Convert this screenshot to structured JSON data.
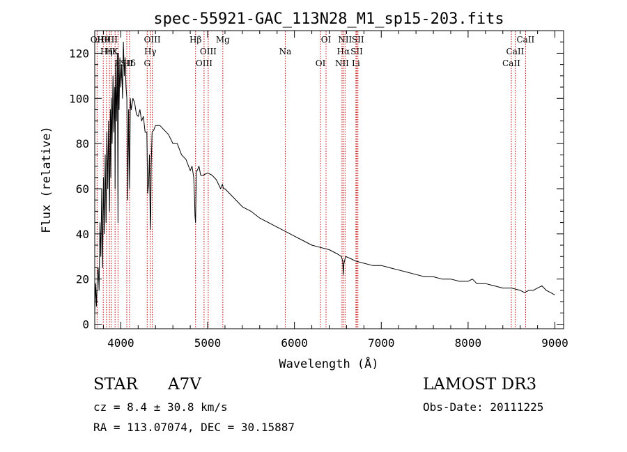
{
  "chart_data": {
    "type": "line",
    "title": "spec-55921-GAC_113N28_M1_sp15-203.fits",
    "xlabel": "Wavelength (Å)",
    "ylabel": "Flux (relative)",
    "xlim": [
      3700,
      9100
    ],
    "ylim": [
      -2,
      130
    ],
    "xticks": [
      4000,
      5000,
      6000,
      7000,
      8000,
      9000
    ],
    "yticks": [
      0,
      20,
      40,
      60,
      80,
      100,
      120
    ],
    "series": [
      {
        "name": "flux",
        "x": [
          3700,
          3710,
          3720,
          3730,
          3740,
          3750,
          3760,
          3770,
          3780,
          3790,
          3800,
          3810,
          3820,
          3830,
          3835,
          3840,
          3850,
          3860,
          3870,
          3880,
          3885,
          3890,
          3900,
          3910,
          3920,
          3930,
          3934,
          3940,
          3950,
          3960,
          3968,
          3970,
          3975,
          3980,
          3990,
          4000,
          4010,
          4020,
          4030,
          4040,
          4050,
          4060,
          4070,
          4080,
          4090,
          4101,
          4110,
          4120,
          4140,
          4160,
          4180,
          4200,
          4220,
          4240,
          4260,
          4280,
          4300,
          4310,
          4320,
          4330,
          4340,
          4345,
          4350,
          4360,
          4380,
          4400,
          4450,
          4500,
          4550,
          4600,
          4650,
          4700,
          4750,
          4800,
          4820,
          4840,
          4850,
          4855,
          4861,
          4865,
          4870,
          4880,
          4900,
          4920,
          4950,
          5000,
          5050,
          5100,
          5150,
          5170,
          5183,
          5200,
          5250,
          5300,
          5400,
          5500,
          5600,
          5700,
          5800,
          5900,
          6000,
          6100,
          6200,
          6300,
          6400,
          6500,
          6540,
          6556,
          6563,
          6570,
          6590,
          6650,
          6700,
          6800,
          6900,
          7000,
          7100,
          7200,
          7300,
          7400,
          7500,
          7600,
          7700,
          7800,
          7900,
          8000,
          8050,
          8100,
          8200,
          8300,
          8400,
          8500,
          8600,
          8650,
          8700,
          8750,
          8800,
          8850,
          8900,
          8950,
          9000
        ],
        "values": [
          5,
          18,
          8,
          22,
          25,
          15,
          45,
          30,
          60,
          25,
          65,
          40,
          75,
          45,
          60,
          85,
          60,
          90,
          50,
          95,
          65,
          100,
          80,
          110,
          85,
          105,
          60,
          115,
          90,
          120,
          45,
          100,
          120,
          95,
          118,
          105,
          115,
          100,
          125,
          110,
          118,
          105,
          100,
          55,
          95,
          60,
          100,
          95,
          100,
          98,
          93,
          92,
          95,
          90,
          92,
          85,
          85,
          58,
          62,
          75,
          42,
          48,
          70,
          85,
          86,
          88,
          88,
          86,
          84,
          80,
          80,
          75,
          73,
          68,
          70,
          65,
          55,
          48,
          45,
          55,
          68,
          68,
          70,
          66,
          66,
          67,
          66,
          64,
          60,
          62,
          60,
          60,
          58,
          56,
          52,
          50,
          47,
          45,
          43,
          41,
          39,
          37,
          35,
          34,
          33,
          31,
          30,
          28,
          22,
          27,
          30,
          29,
          28,
          27,
          26,
          26,
          25,
          24,
          23,
          22,
          21,
          21,
          20,
          20,
          19,
          19,
          20,
          18,
          18,
          17,
          16,
          16,
          15,
          14,
          15,
          15,
          16,
          17,
          15,
          14,
          13
        ]
      }
    ],
    "lines": [
      {
        "label": "Hθ",
        "x": 3798
      },
      {
        "label": "K",
        "x": 3934
      },
      {
        "label": "Hδ",
        "x": 4101
      },
      {
        "label": "OII",
        "x": 3727
      },
      {
        "label": "Hε",
        "x": 3889
      },
      {
        "label": "SII",
        "x": 4069
      },
      {
        "label": "OIII",
        "x": 3869
      },
      {
        "label": "Hη",
        "x": 3835
      },
      {
        "label": "H",
        "x": 3968
      },
      {
        "label": "OIII",
        "x": 4363
      },
      {
        "label": "Hγ",
        "x": 4340
      },
      {
        "label": "G",
        "x": 4304
      },
      {
        "label": "Hβ",
        "x": 4861
      },
      {
        "label": "OIII",
        "x": 5007
      },
      {
        "label": "OIII",
        "x": 4959
      },
      {
        "label": "Mg",
        "x": 5175
      },
      {
        "label": "Na",
        "x": 5894
      },
      {
        "label": "OI",
        "x": 6300
      },
      {
        "label": "OI",
        "x": 6364
      },
      {
        "label": "Hα",
        "x": 6563
      },
      {
        "label": "NII",
        "x": 6548
      },
      {
        "label": "NII",
        "x": 6583
      },
      {
        "label": "SII",
        "x": 6717
      },
      {
        "label": "Li",
        "x": 6708
      },
      {
        "label": "SII",
        "x": 6731
      },
      {
        "label": "CaII",
        "x": 8542
      },
      {
        "label": "CaII",
        "x": 8498
      },
      {
        "label": "CaII",
        "x": 8662
      }
    ]
  },
  "info": {
    "class": "STAR",
    "subclass": "A7V",
    "survey": "LAMOST DR3",
    "cz": "cz = 8.4 ± 30.8 km/s",
    "obs_date": "Obs-Date: 20111225",
    "coords": "RA = 113.07074, DEC =  30.15887"
  },
  "colors": {
    "spectrum": "#000000",
    "line_marker": "#c00000",
    "axes": "#000000",
    "background": "#ffffff"
  }
}
